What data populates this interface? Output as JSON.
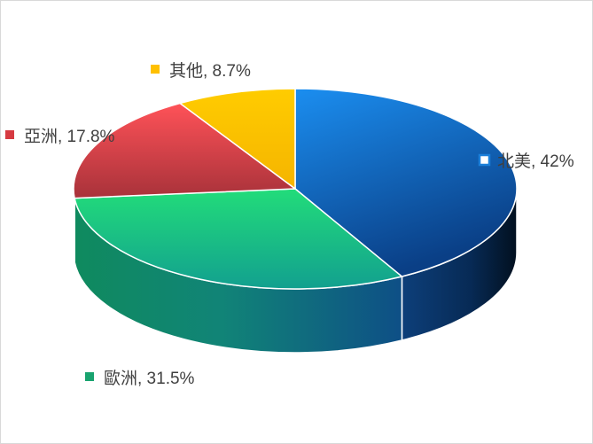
{
  "chart_data": {
    "type": "pie",
    "style": "3d-pie",
    "title": "",
    "legend": "labels-on-slices",
    "slices": [
      {
        "label": "北美",
        "value": 42,
        "display": "北美, 42%",
        "color": "#1b7fd9"
      },
      {
        "label": "歐洲",
        "value": 31.5,
        "display": "歐洲, 31.5%",
        "color": "#22c873"
      },
      {
        "label": "亞洲",
        "value": 17.8,
        "display": "亞洲, 17.8%",
        "color": "#e8444b"
      },
      {
        "label": "其他",
        "value": 8.7,
        "display": "其他, 8.7%",
        "color": "#ffc000"
      }
    ]
  }
}
